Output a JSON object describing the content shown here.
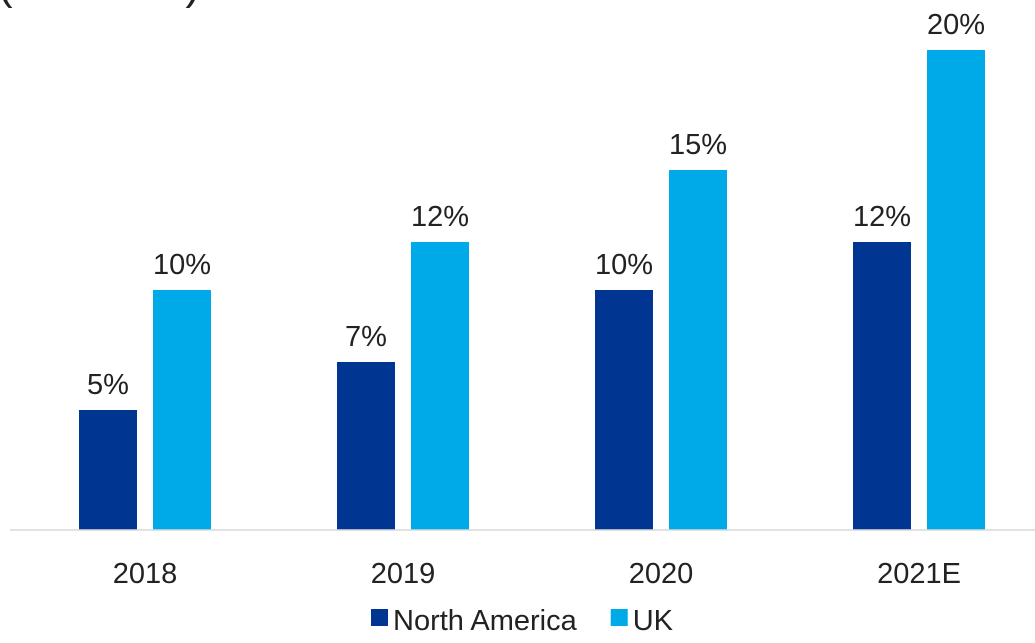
{
  "chart_data": {
    "type": "bar",
    "title": "",
    "xlabel": "",
    "ylabel": "",
    "ylim": [
      0,
      20
    ],
    "categories": [
      "2018",
      "2019",
      "2020",
      "2021E"
    ],
    "series": [
      {
        "name": "North America",
        "color": "#003591",
        "values": [
          5,
          7,
          10,
          12
        ],
        "labels": [
          "5%",
          "7%",
          "10%",
          "12%"
        ]
      },
      {
        "name": "UK",
        "color": "#00a9e8",
        "values": [
          10,
          12,
          15,
          20
        ],
        "labels": [
          "10%",
          "12%",
          "15%",
          "20%"
        ]
      }
    ],
    "grid": false,
    "legend_position": "bottom"
  }
}
